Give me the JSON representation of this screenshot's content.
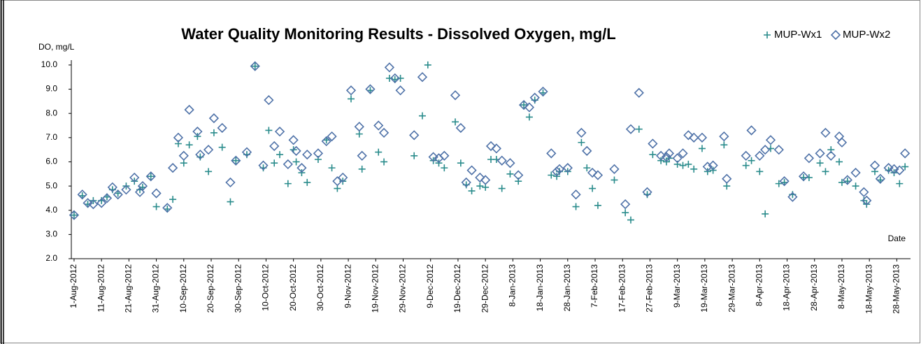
{
  "chart_data": {
    "type": "scatter",
    "title": "Water Quality Monitoring Results - Dissolved Oxygen, mg/L",
    "y_label": "DO, mg/L",
    "x_label": "Date",
    "x": [
      "2012-08-01",
      "2012-08-04",
      "2012-08-06",
      "2012-08-08",
      "2012-08-11",
      "2012-08-13",
      "2012-08-15",
      "2012-08-17",
      "2012-08-20",
      "2012-08-23",
      "2012-08-25",
      "2012-08-26",
      "2012-08-29",
      "2012-08-31",
      "2012-09-04",
      "2012-09-06",
      "2012-09-08",
      "2012-09-10",
      "2012-09-12",
      "2012-09-15",
      "2012-09-16",
      "2012-09-19",
      "2012-09-21",
      "2012-09-24",
      "2012-09-27",
      "2012-09-29",
      "2012-10-03",
      "2012-10-06",
      "2012-10-09",
      "2012-10-11",
      "2012-10-13",
      "2012-10-15",
      "2012-10-18",
      "2012-10-20",
      "2012-10-21",
      "2012-10-23",
      "2012-10-25",
      "2012-10-29",
      "2012-11-01",
      "2012-11-03",
      "2012-11-05",
      "2012-11-07",
      "2012-11-10",
      "2012-11-13",
      "2012-11-14",
      "2012-11-17",
      "2012-11-20",
      "2012-11-22",
      "2012-11-24",
      "2012-11-26",
      "2012-11-28",
      "2012-12-03",
      "2012-12-06",
      "2012-12-08",
      "2012-12-10",
      "2012-12-12",
      "2012-12-14",
      "2012-12-18",
      "2012-12-20",
      "2012-12-22",
      "2012-12-24",
      "2012-12-27",
      "2012-12-29",
      "2012-12-31",
      "2013-01-02",
      "2013-01-04",
      "2013-01-07",
      "2013-01-10",
      "2013-01-12",
      "2013-01-14",
      "2013-01-16",
      "2013-01-19",
      "2013-01-22",
      "2013-01-24",
      "2013-01-25",
      "2013-01-28",
      "2013-01-31",
      "2013-02-02",
      "2013-02-04",
      "2013-02-06",
      "2013-02-08",
      "2013-02-14",
      "2013-02-18",
      "2013-02-20",
      "2013-02-23",
      "2013-02-26",
      "2013-02-28",
      "2013-03-03",
      "2013-03-05",
      "2013-03-06",
      "2013-03-09",
      "2013-03-11",
      "2013-03-13",
      "2013-03-15",
      "2013-03-18",
      "2013-03-20",
      "2013-03-22",
      "2013-03-26",
      "2013-03-27",
      "2013-04-03",
      "2013-04-05",
      "2013-04-08",
      "2013-04-10",
      "2013-04-12",
      "2013-04-15",
      "2013-04-17",
      "2013-04-20",
      "2013-04-24",
      "2013-04-26",
      "2013-04-30",
      "2013-05-02",
      "2013-05-04",
      "2013-05-07",
      "2013-05-08",
      "2013-05-10",
      "2013-05-13",
      "2013-05-16",
      "2013-05-17",
      "2013-05-20",
      "2013-05-22",
      "2013-05-25",
      "2013-05-27",
      "2013-05-29",
      "2013-05-31"
    ],
    "series": [
      {
        "name": "MUP-Wx1",
        "color": "#2a8c8c",
        "marker": "plus",
        "values": [
          3.8,
          4.6,
          4.25,
          4.4,
          4.4,
          4.55,
          4.85,
          4.7,
          5.0,
          5.2,
          4.85,
          4.95,
          5.4,
          4.15,
          4.05,
          4.45,
          6.75,
          5.95,
          6.7,
          7.05,
          6.2,
          5.6,
          7.2,
          6.6,
          4.35,
          6.05,
          6.3,
          9.95,
          5.75,
          7.3,
          5.95,
          6.3,
          5.1,
          6.5,
          6.0,
          5.55,
          5.15,
          6.1,
          6.9,
          5.75,
          4.9,
          5.2,
          8.6,
          7.15,
          5.7,
          8.95,
          6.4,
          6.0,
          9.45,
          9.4,
          9.45,
          6.25,
          7.9,
          10.0,
          6.05,
          5.95,
          5.75,
          7.65,
          5.95,
          5.05,
          4.8,
          5.0,
          4.95,
          6.1,
          6.1,
          4.9,
          5.5,
          5.2,
          8.35,
          7.85,
          8.55,
          8.85,
          5.45,
          5.4,
          5.6,
          5.6,
          4.15,
          6.8,
          5.75,
          4.9,
          4.2,
          5.25,
          3.9,
          3.6,
          7.35,
          4.65,
          6.3,
          6.05,
          6.0,
          6.15,
          5.9,
          5.85,
          5.9,
          5.7,
          6.55,
          5.6,
          5.65,
          6.7,
          5.0,
          5.85,
          6.05,
          5.6,
          3.85,
          6.55,
          5.1,
          5.15,
          4.65,
          5.35,
          5.35,
          5.95,
          5.6,
          6.5,
          6.0,
          5.15,
          5.2,
          5.0,
          4.4,
          4.25,
          5.6,
          5.25,
          5.65,
          5.55,
          5.1,
          5.8
        ]
      },
      {
        "name": "MUP-Wx2",
        "color": "#4f72a8",
        "marker": "diamond",
        "values": [
          3.8,
          4.65,
          4.3,
          4.25,
          4.3,
          4.5,
          4.95,
          4.65,
          4.85,
          5.35,
          4.75,
          5.0,
          5.4,
          4.7,
          4.1,
          5.75,
          7.0,
          6.25,
          8.15,
          7.25,
          6.3,
          6.5,
          7.8,
          7.4,
          5.15,
          6.05,
          6.4,
          9.95,
          5.85,
          8.55,
          6.65,
          7.25,
          5.9,
          6.9,
          6.45,
          5.75,
          6.3,
          6.35,
          6.85,
          7.05,
          5.2,
          5.35,
          8.95,
          7.45,
          6.25,
          9.0,
          7.5,
          7.2,
          9.9,
          9.45,
          8.95,
          7.1,
          9.5,
          null,
          6.2,
          6.15,
          6.25,
          8.75,
          7.4,
          5.15,
          5.65,
          5.35,
          5.25,
          6.65,
          6.55,
          6.05,
          5.95,
          5.45,
          8.35,
          8.25,
          8.65,
          8.9,
          6.35,
          5.6,
          5.7,
          5.75,
          4.65,
          7.2,
          6.45,
          5.55,
          5.45,
          5.7,
          4.25,
          7.35,
          8.85,
          4.75,
          6.75,
          6.25,
          6.2,
          6.35,
          6.15,
          6.35,
          7.1,
          7.0,
          7.0,
          5.8,
          5.85,
          7.05,
          5.3,
          6.25,
          7.3,
          6.25,
          6.5,
          6.9,
          6.5,
          5.2,
          4.55,
          5.4,
          6.15,
          6.35,
          7.2,
          6.25,
          7.05,
          6.8,
          5.25,
          5.55,
          4.75,
          4.4,
          5.85,
          5.3,
          5.75,
          5.7,
          5.65,
          6.35
        ]
      }
    ],
    "xlim": [
      "2012-07-31",
      "2013-06-02"
    ],
    "xticks": [
      {
        "value": "2012-08-01",
        "label": "1-Aug-2012"
      },
      {
        "value": "2012-08-11",
        "label": "11-Aug-2012"
      },
      {
        "value": "2012-08-21",
        "label": "21-Aug-2012"
      },
      {
        "value": "2012-08-31",
        "label": "31-Aug-2012"
      },
      {
        "value": "2012-09-10",
        "label": "10-Sep-2012"
      },
      {
        "value": "2012-09-20",
        "label": "20-Sep-2012"
      },
      {
        "value": "2012-09-30",
        "label": "30-Sep-2012"
      },
      {
        "value": "2012-10-10",
        "label": "10-Oct-2012"
      },
      {
        "value": "2012-10-20",
        "label": "20-Oct-2012"
      },
      {
        "value": "2012-10-30",
        "label": "30-Oct-2012"
      },
      {
        "value": "2012-11-09",
        "label": "9-Nov-2012"
      },
      {
        "value": "2012-11-19",
        "label": "19-Nov-2012"
      },
      {
        "value": "2012-11-29",
        "label": "29-Nov-2012"
      },
      {
        "value": "2012-12-09",
        "label": "9-Dec-2012"
      },
      {
        "value": "2012-12-19",
        "label": "19-Dec-2012"
      },
      {
        "value": "2012-12-29",
        "label": "29-Dec-2012"
      },
      {
        "value": "2013-01-08",
        "label": "8-Jan-2013"
      },
      {
        "value": "2013-01-18",
        "label": "18-Jan-2013"
      },
      {
        "value": "2013-01-28",
        "label": "28-Jan-2013"
      },
      {
        "value": "2013-02-07",
        "label": "7-Feb-2013"
      },
      {
        "value": "2013-02-17",
        "label": "17-Feb-2013"
      },
      {
        "value": "2013-02-27",
        "label": "27-Feb-2013"
      },
      {
        "value": "2013-03-09",
        "label": "9-Mar-2013"
      },
      {
        "value": "2013-03-19",
        "label": "19-Mar-2013"
      },
      {
        "value": "2013-03-29",
        "label": "29-Mar-2013"
      },
      {
        "value": "2013-04-08",
        "label": "8-Apr-2013"
      },
      {
        "value": "2013-04-18",
        "label": "18-Apr-2013"
      },
      {
        "value": "2013-04-28",
        "label": "28-Apr-2013"
      },
      {
        "value": "2013-05-08",
        "label": "8-May-2013"
      },
      {
        "value": "2013-05-18",
        "label": "18-May-2013"
      },
      {
        "value": "2013-05-28",
        "label": "28-May-2013"
      }
    ],
    "ylim": [
      2,
      10.2
    ],
    "yticks": [
      {
        "value": 2,
        "label": "2.0"
      },
      {
        "value": 3,
        "label": "3.0"
      },
      {
        "value": 4,
        "label": "4.0"
      },
      {
        "value": 5,
        "label": "5.0"
      },
      {
        "value": 6,
        "label": "6.0"
      },
      {
        "value": 7,
        "label": "7.0"
      },
      {
        "value": 8,
        "label": "8.0"
      },
      {
        "value": 9,
        "label": "9.0"
      },
      {
        "value": 10,
        "label": "10.0"
      }
    ],
    "grid": false,
    "legend": "top-right"
  }
}
